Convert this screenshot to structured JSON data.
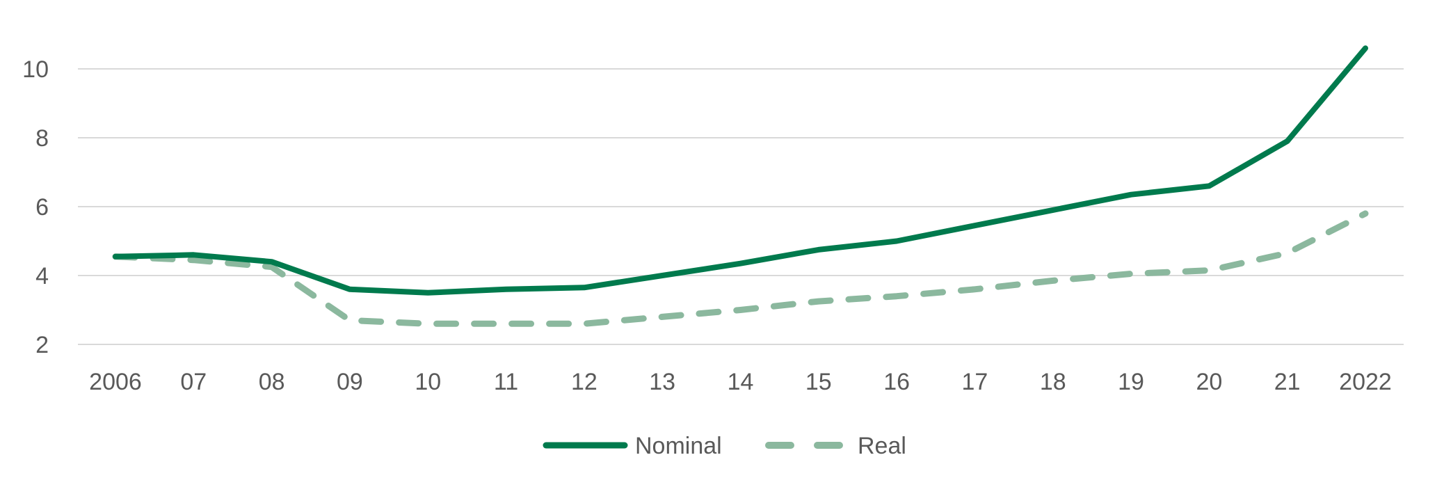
{
  "chart_data": {
    "type": "line",
    "title": "",
    "xlabel": "",
    "ylabel": "",
    "categories": [
      "2006",
      "07",
      "08",
      "09",
      "10",
      "11",
      "12",
      "13",
      "14",
      "15",
      "16",
      "17",
      "18",
      "19",
      "20",
      "21",
      "2022"
    ],
    "y_ticks": [
      "2",
      "4",
      "6",
      "8",
      "10"
    ],
    "ylim": [
      2,
      11
    ],
    "grid": true,
    "legend_position": "bottom-center",
    "series": [
      {
        "name": "Nominal",
        "style": "solid",
        "color": "#007a4d",
        "values": [
          4.55,
          4.6,
          4.4,
          3.6,
          3.5,
          3.6,
          3.65,
          4.0,
          4.35,
          4.75,
          5.0,
          5.45,
          5.9,
          6.35,
          6.6,
          7.9,
          10.6
        ]
      },
      {
        "name": "Real",
        "style": "dashed",
        "color": "#8bb89e",
        "values": [
          4.55,
          4.45,
          4.25,
          2.7,
          2.6,
          2.6,
          2.6,
          2.8,
          3.0,
          3.25,
          3.4,
          3.6,
          3.85,
          4.05,
          4.15,
          4.65,
          5.8
        ]
      }
    ]
  }
}
